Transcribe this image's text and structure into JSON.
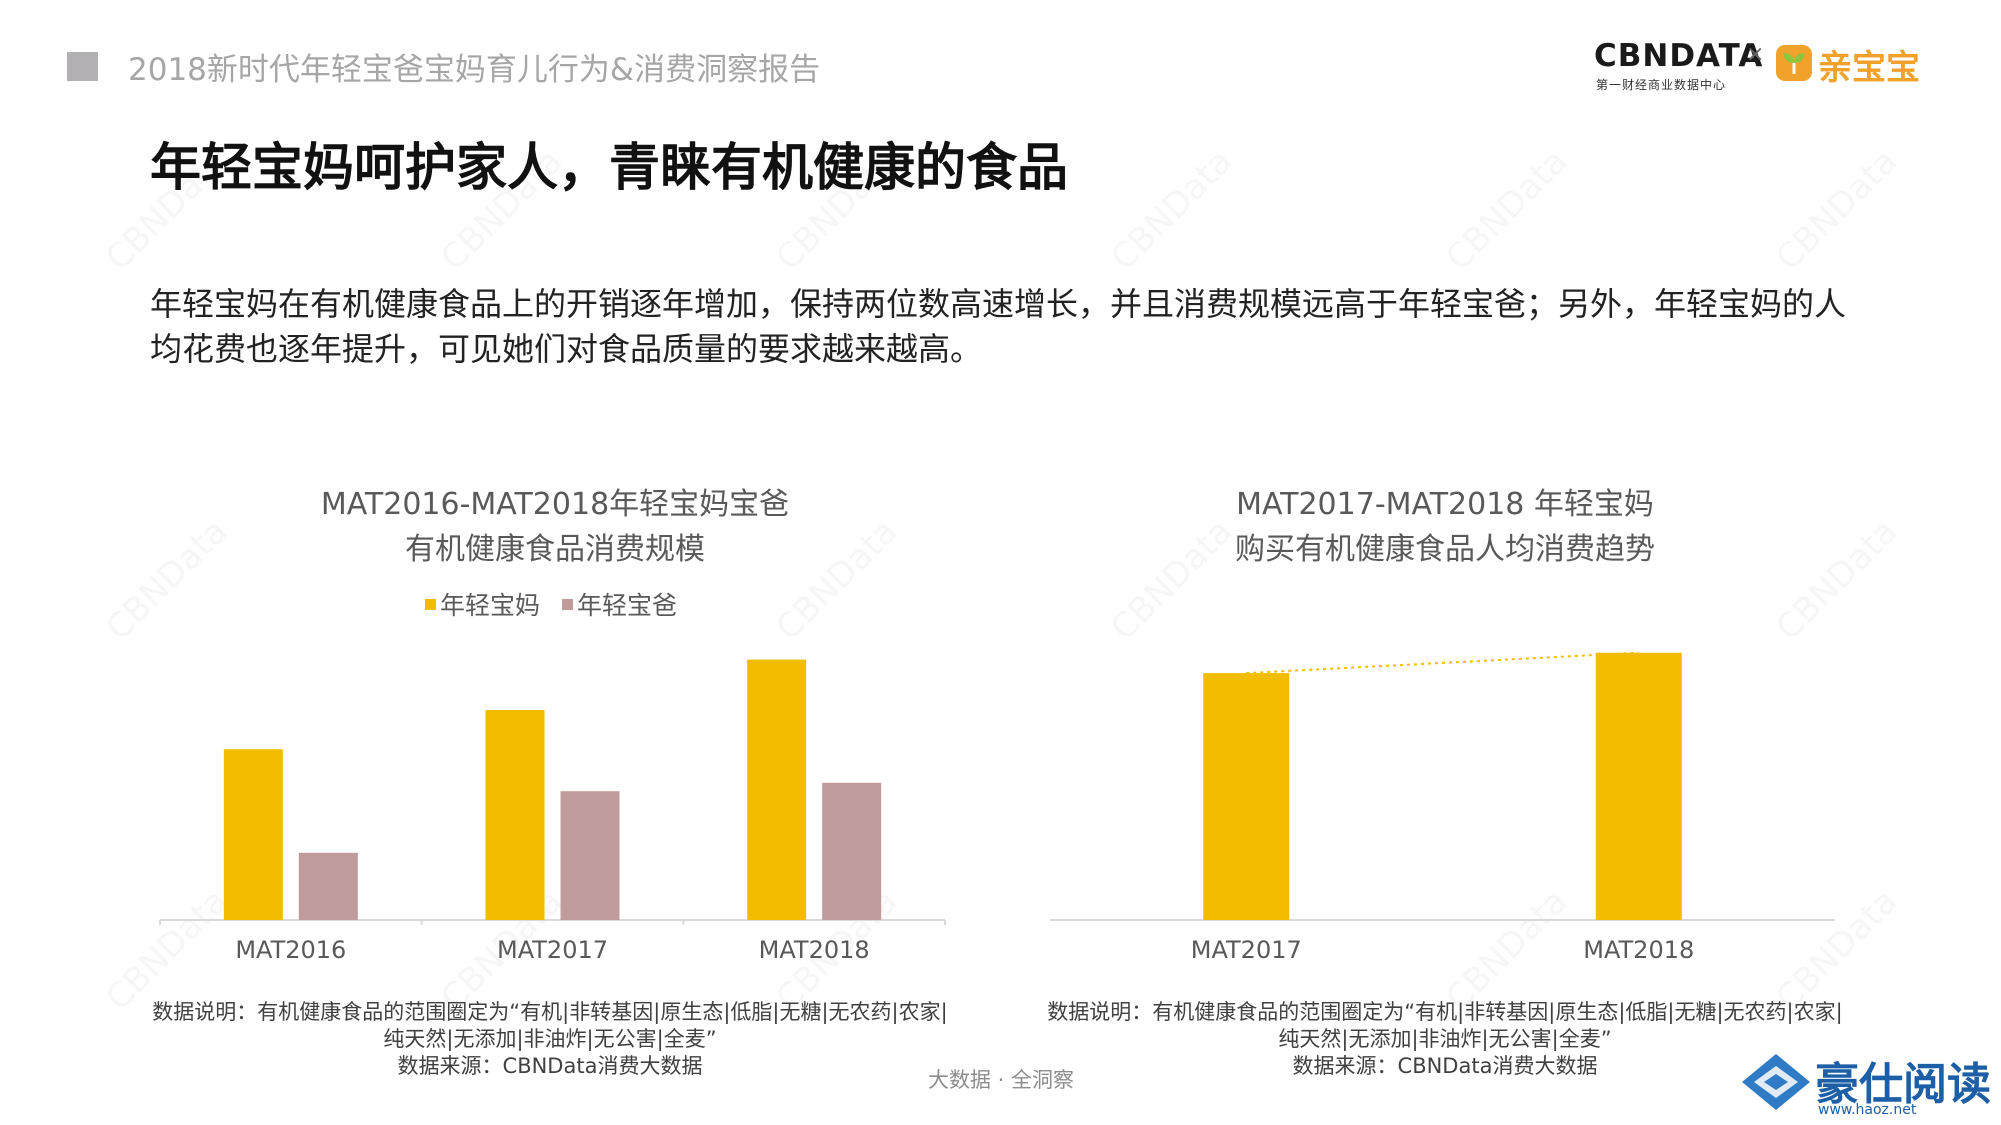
{
  "header": {
    "report_title": "2018新时代年轻宝爸宝妈育儿行为&消费洞察报告",
    "brand_cbn": "CBNDATA",
    "brand_cbn_sub": "第一财经商业数据中心",
    "brand_separator": "×",
    "brand_partner": "亲宝宝"
  },
  "page_title": "年轻宝妈呵护家人，青睐有机健康的食品",
  "paragraph": "年轻宝妈在有机健康食品上的开销逐年增加，保持两位数高速增长，并且消费规模远高于年轻宝爸；另外，年轻宝妈的人均花费也逐年提升，可见她们对食品质量的要求越来越高。",
  "watermark": "CBNData",
  "colors": {
    "mom": "#f2bd00",
    "dad": "#c09b9b",
    "axis": "#d9d9d9",
    "trend": "#f2bd00"
  },
  "chart_data": [
    {
      "type": "bar",
      "title_line1": "MAT2016-MAT2018年轻宝妈宝爸",
      "title_line2": "有机健康食品消费规模",
      "categories": [
        "MAT2016",
        "MAT2017",
        "MAT2018"
      ],
      "series": [
        {
          "name": "年轻宝妈",
          "values": [
            61,
            75,
            93
          ]
        },
        {
          "name": "年轻宝爸",
          "values": [
            24,
            46,
            49
          ]
        }
      ],
      "ylim": [
        0,
        100
      ],
      "legend": "top",
      "grid": false,
      "note_line1": "数据说明：有机健康食品的范围圈定为“有机|非转基因|原生态|低脂|无糖|无农药|农家|",
      "note_line2": "纯天然|无添加|非油炸|无公害|全麦”",
      "note_line3": "数据来源：CBNData消费大数据"
    },
    {
      "type": "bar",
      "title_line1": "MAT2017-MAT2018 年轻宝妈",
      "title_line2": "购买有机健康食品人均消费趋势",
      "categories": [
        "MAT2017",
        "MAT2018"
      ],
      "series": [
        {
          "values": [
            97,
            105
          ]
        }
      ],
      "ylim": [
        0,
        110
      ],
      "trendline": true,
      "legend": "none",
      "grid": false,
      "note_line1": "数据说明：有机健康食品的范围圈定为“有机|非转基因|原生态|低脂|无糖|无农药|农家|",
      "note_line2": "纯天然|无添加|非油炸|无公害|全麦”",
      "note_line3": "数据来源：CBNData消费大数据"
    }
  ],
  "footer": {
    "slogan": "大数据 · 全洞察",
    "corner_logo_text": "豪仕阅读",
    "corner_logo_url": "www.haoz.net"
  }
}
